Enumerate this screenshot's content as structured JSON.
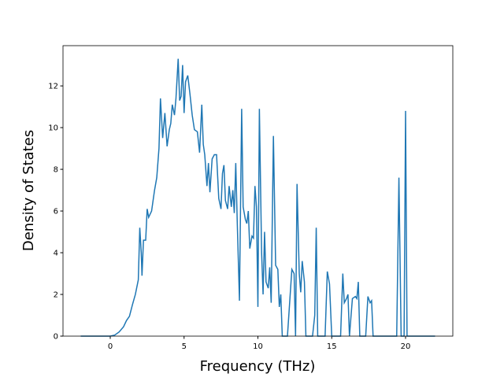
{
  "chart_data": {
    "type": "line",
    "xlabel": "Frequency (THz)",
    "ylabel": "Density of States",
    "xlim": [
      -3.2,
      23.2
    ],
    "ylim": [
      0,
      13.93
    ],
    "xticks": [
      0,
      5,
      10,
      15,
      20
    ],
    "yticks": [
      0,
      2,
      4,
      6,
      8,
      10,
      12
    ],
    "x": [
      -2,
      0,
      0.3,
      0.6,
      0.9,
      1.1,
      1.3,
      1.5,
      1.7,
      1.9,
      2.0,
      2.1,
      2.15,
      2.25,
      2.4,
      2.5,
      2.6,
      2.8,
      3.0,
      3.15,
      3.3,
      3.4,
      3.55,
      3.7,
      3.85,
      4.0,
      4.1,
      4.2,
      4.35,
      4.45,
      4.6,
      4.7,
      4.8,
      4.9,
      5.0,
      5.1,
      5.25,
      5.4,
      5.55,
      5.7,
      5.9,
      6.05,
      6.2,
      6.3,
      6.4,
      6.55,
      6.65,
      6.75,
      6.9,
      7.05,
      7.2,
      7.35,
      7.5,
      7.6,
      7.7,
      7.8,
      7.95,
      8.05,
      8.2,
      8.3,
      8.4,
      8.5,
      8.6,
      8.75,
      8.9,
      9.0,
      9.15,
      9.25,
      9.35,
      9.45,
      9.6,
      9.7,
      9.8,
      9.9,
      10.0,
      10.1,
      10.25,
      10.35,
      10.45,
      10.55,
      10.7,
      10.8,
      10.9,
      11.05,
      11.2,
      11.35,
      11.45,
      11.55,
      11.65,
      12.0,
      12.3,
      12.45,
      12.55,
      12.65,
      12.8,
      12.9,
      13.0,
      13.15,
      13.25,
      13.7,
      13.85,
      13.95,
      14.05,
      14.55,
      14.7,
      14.85,
      15.0,
      15.6,
      15.75,
      15.85,
      16.0,
      16.1,
      16.2,
      16.4,
      16.6,
      16.7,
      16.8,
      16.9,
      17.3,
      17.45,
      17.6,
      17.7,
      17.8,
      19.4,
      19.55,
      19.7,
      19.9,
      20.0,
      20.1,
      22
    ],
    "series": [
      {
        "color": "#1f77b4",
        "values": [
          0,
          0,
          0.05,
          0.2,
          0.45,
          0.75,
          0.95,
          1.5,
          2.0,
          2.7,
          5.2,
          4.0,
          2.9,
          4.6,
          4.6,
          6.1,
          5.7,
          6.0,
          7.0,
          7.6,
          9.0,
          11.4,
          9.5,
          10.7,
          9.1,
          9.9,
          10.2,
          11.1,
          10.6,
          11.4,
          13.3,
          11.3,
          11.5,
          13.0,
          10.7,
          12.2,
          12.5,
          11.6,
          10.6,
          9.9,
          9.8,
          8.8,
          11.1,
          9.2,
          8.7,
          7.2,
          8.3,
          6.9,
          8.5,
          8.7,
          8.7,
          6.6,
          6.1,
          7.8,
          8.2,
          6.5,
          6.1,
          7.2,
          6.2,
          7.0,
          5.9,
          8.3,
          5.5,
          1.7,
          10.9,
          6.2,
          5.6,
          5.4,
          6.0,
          4.2,
          4.8,
          4.7,
          7.2,
          6.2,
          1.4,
          10.9,
          4.0,
          2.0,
          5.0,
          2.6,
          2.3,
          3.3,
          1.6,
          9.6,
          3.4,
          3.2,
          1.4,
          2.0,
          0,
          0,
          3.2,
          3.0,
          0,
          7.3,
          3.0,
          2.1,
          3.6,
          2.6,
          0,
          0,
          1.0,
          5.2,
          0,
          0,
          3.1,
          2.5,
          0,
          0,
          3.0,
          1.6,
          1.8,
          2.0,
          0,
          1.8,
          1.9,
          1.8,
          2.6,
          0,
          0,
          1.9,
          1.6,
          1.7,
          0,
          0,
          7.6,
          0,
          0,
          10.8,
          0,
          0
        ]
      }
    ]
  }
}
